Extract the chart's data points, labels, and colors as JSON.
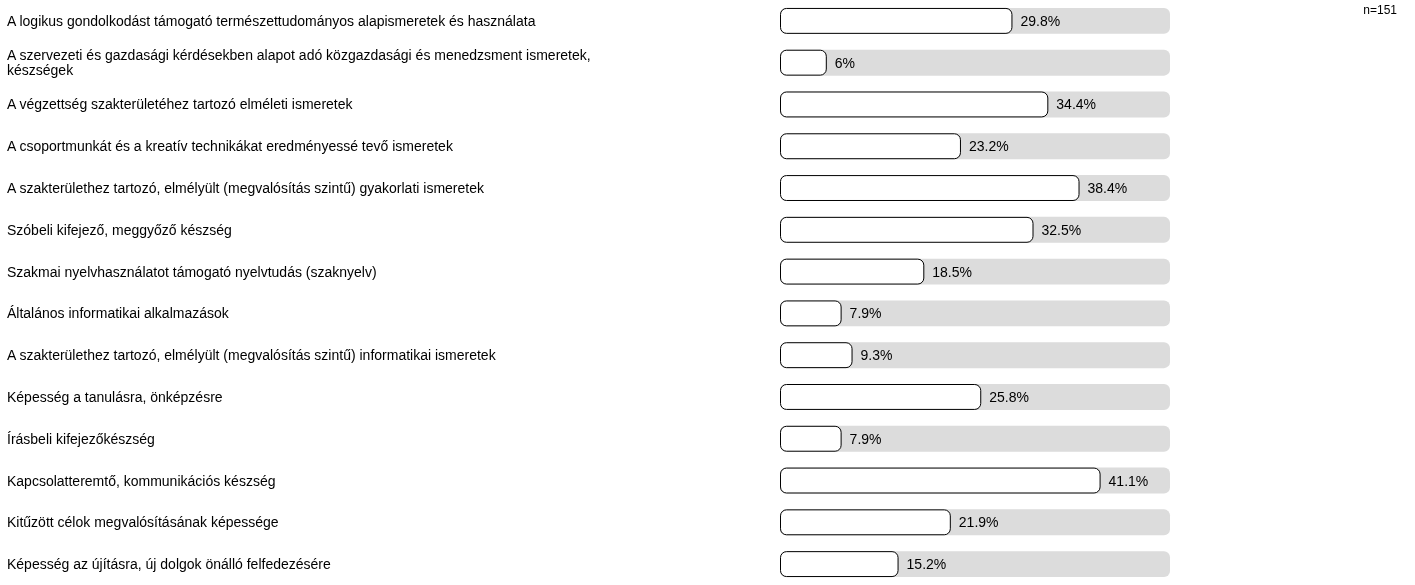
{
  "chart_data": {
    "type": "bar",
    "orientation": "horizontal",
    "categories": [
      "A logikus gondolkodást támogató természettudományos alapismeretek és használata",
      "A szervezeti és gazdasági kérdésekben alapot adó közgazdasági és menedzsment ismeretek, készségek",
      "A végzettség szakterületéhez tartozó elméleti ismeretek",
      "A csoportmunkát és a kreatív technikákat eredményessé tevő ismeretek",
      "A szakterülethez tartozó, elmélyült (megvalósítás szintű) gyakorlati ismeretek",
      "Szóbeli kifejező, meggyőző készség",
      "Szakmai nyelvhasználatot támogató nyelvtudás (szaknyelv)",
      "Általános informatikai alkalmazások",
      "A szakterülethez tartozó, elmélyült (megvalósítás szintű) informatikai ismeretek",
      "Képesség a tanulásra, önképzésre",
      "Írásbeli kifejezőkészség",
      "Kapcsolatteremtő, kommunikációs készség",
      "Kitűzött célok megvalósításának képessége",
      "Képesség az újításra, új dolgok önálló felfedezésére"
    ],
    "values": [
      29.8,
      6,
      34.4,
      23.2,
      38.4,
      32.5,
      18.5,
      7.9,
      9.3,
      25.8,
      7.9,
      41.1,
      21.9,
      15.2
    ],
    "value_labels": [
      "29.8%",
      "6%",
      "34.4%",
      "23.2%",
      "38.4%",
      "32.5%",
      "18.5%",
      "7.9%",
      "9.3%",
      "25.8%",
      "7.9%",
      "41.1%",
      "21.9%",
      "15.2%"
    ],
    "color": "#ffffff",
    "tick_labels": "y",
    "annotations": [
      "n=151"
    ]
  }
}
